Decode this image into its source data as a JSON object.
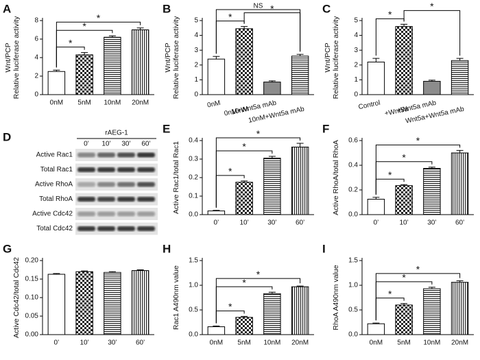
{
  "chart_data": [
    {
      "type": "bar",
      "panel": "A",
      "ylabel": [
        "Wnt/PCP",
        "Relative luciferase activity"
      ],
      "categories": [
        "0nM",
        "5nM",
        "10nM",
        "20nM"
      ],
      "values": [
        2.5,
        4.3,
        6.2,
        7.0
      ],
      "errors": [
        0.15,
        0.25,
        0.15,
        0.2
      ],
      "fills": [
        "white",
        "checker",
        "hlines",
        "vlines"
      ],
      "ylim": [
        0,
        8
      ],
      "yticks": [
        0,
        2,
        4,
        6,
        8
      ],
      "brackets": [
        {
          "from": 0,
          "to": 1,
          "label": "*"
        },
        {
          "from": 0,
          "to": 2,
          "label": "*"
        },
        {
          "from": 0,
          "to": 3,
          "label": "*"
        }
      ]
    },
    {
      "type": "bar",
      "panel": "B",
      "ylabel": [
        "Wnt/PCP",
        "Relative luciferase activity"
      ],
      "categories": [
        "0nM",
        "10nM",
        "0nM+Wnt5a mAb",
        "10nM+Wnt5a mAb"
      ],
      "values": [
        2.4,
        4.45,
        0.85,
        2.6
      ],
      "errors": [
        0.18,
        0.15,
        0.08,
        0.12
      ],
      "fills": [
        "white",
        "checker",
        "gray",
        "hlines"
      ],
      "ylim": [
        0,
        5
      ],
      "yticks": [
        0,
        1,
        2,
        3,
        4,
        5
      ],
      "brackets": [
        {
          "from": 0,
          "to": 1,
          "label": "*"
        },
        {
          "from": 1,
          "to": 3,
          "label": "*"
        },
        {
          "from": 0,
          "to": 3,
          "label": "NS"
        }
      ]
    },
    {
      "type": "bar",
      "panel": "C",
      "ylabel": [
        "Wnt/PCP",
        "Relative luciferase activity"
      ],
      "categories": [
        "Control",
        "+Wnt5a",
        "+Wnt5a mAb",
        "Wnt5a+Wnt5a mAb"
      ],
      "values": [
        2.2,
        4.6,
        0.9,
        2.3
      ],
      "errors": [
        0.25,
        0.15,
        0.08,
        0.15
      ],
      "fills": [
        "white",
        "checker",
        "gray",
        "hlines"
      ],
      "ylim": [
        0,
        5
      ],
      "yticks": [
        0,
        1,
        2,
        3,
        4,
        5
      ],
      "brackets": [
        {
          "from": 0,
          "to": 1,
          "label": "*"
        },
        {
          "from": 1,
          "to": 3,
          "label": "*"
        }
      ]
    },
    {
      "type": "bar",
      "panel": "E",
      "ylabel": [
        "Active Rac1/total Rac1"
      ],
      "categories": [
        "0’",
        "10’",
        "30’",
        "60’"
      ],
      "values": [
        0.02,
        0.175,
        0.305,
        0.365
      ],
      "errors": [
        0.003,
        0.007,
        0.01,
        0.02
      ],
      "fills": [
        "white",
        "checker",
        "hlines",
        "vlines"
      ],
      "ylim": [
        0,
        0.4
      ],
      "yticks": [
        {
          "value": 0,
          "label": "0.0"
        },
        0.1,
        0.2,
        0.3,
        0.4
      ],
      "brackets": [
        {
          "from": 0,
          "to": 1,
          "label": "*"
        },
        {
          "from": 0,
          "to": 2,
          "label": "*"
        },
        {
          "from": 0,
          "to": 3,
          "label": "*"
        }
      ]
    },
    {
      "type": "bar",
      "panel": "F",
      "ylabel": [
        "Active RhoA/total RhoA"
      ],
      "categories": [
        "0’",
        "10’",
        "30’",
        "60’"
      ],
      "values": [
        0.125,
        0.235,
        0.375,
        0.5
      ],
      "errors": [
        0.015,
        0.008,
        0.01,
        0.02
      ],
      "fills": [
        "white",
        "checker",
        "hlines",
        "vlines"
      ],
      "ylim": [
        0,
        0.6
      ],
      "yticks": [
        {
          "value": 0,
          "label": "0.0"
        },
        0.2,
        0.4,
        0.6
      ],
      "brackets": [
        {
          "from": 0,
          "to": 1,
          "label": "*"
        },
        {
          "from": 0,
          "to": 2,
          "label": "*"
        },
        {
          "from": 0,
          "to": 3,
          "label": "*"
        }
      ]
    },
    {
      "type": "bar",
      "panel": "G",
      "ylabel": [
        "Active Cdc42/total Cdc42"
      ],
      "categories": [
        "0’",
        "10’",
        "30’",
        "60’"
      ],
      "values": [
        0.163,
        0.17,
        0.168,
        0.173
      ],
      "errors": [
        0.002,
        0.002,
        0.002,
        0.002
      ],
      "fills": [
        "white",
        "checker",
        "hlines",
        "vlines"
      ],
      "ylim": [
        0,
        0.2
      ],
      "yticks": [
        {
          "value": 0,
          "label": "0.00"
        },
        0.05,
        {
          "value": 0.1,
          "label": "0.10"
        },
        0.15,
        {
          "value": 0.2,
          "label": "0.20"
        }
      ],
      "brackets": []
    },
    {
      "type": "bar",
      "panel": "H",
      "ylabel": [
        "Rac1 A490nm value"
      ],
      "categories": [
        "0nM",
        "5nM",
        "10nM",
        "20nM"
      ],
      "values": [
        0.16,
        0.35,
        0.83,
        0.97
      ],
      "errors": [
        0.015,
        0.02,
        0.03,
        0.015
      ],
      "fills": [
        "white",
        "checker",
        "hlines",
        "vlines"
      ],
      "ylim": [
        0,
        1.5
      ],
      "yticks": [
        {
          "value": 0,
          "label": "0.0"
        },
        0.5,
        {
          "value": 1,
          "label": "1.0"
        },
        1.5
      ],
      "brackets": [
        {
          "from": 0,
          "to": 1,
          "label": "*"
        },
        {
          "from": 0,
          "to": 2,
          "label": "*"
        },
        {
          "from": 0,
          "to": 3,
          "label": "*"
        }
      ]
    },
    {
      "type": "bar",
      "panel": "I",
      "ylabel": [
        "RhoA A490nm value"
      ],
      "categories": [
        "0nM",
        "5nM",
        "10nM",
        "20nM"
      ],
      "values": [
        0.22,
        0.6,
        0.93,
        1.06
      ],
      "errors": [
        0.015,
        0.03,
        0.03,
        0.03
      ],
      "fills": [
        "white",
        "checker",
        "hlines",
        "vlines"
      ],
      "ylim": [
        0,
        1.5
      ],
      "yticks": [
        {
          "value": 0,
          "label": "0.0"
        },
        0.5,
        {
          "value": 1,
          "label": "1.0"
        },
        1.5
      ],
      "brackets": [
        {
          "from": 0,
          "to": 1,
          "label": "*"
        },
        {
          "from": 0,
          "to": 2,
          "label": "*"
        },
        {
          "from": 0,
          "to": 3,
          "label": "*"
        }
      ]
    }
  ],
  "blot": {
    "panel": "D",
    "title": "rAEG-1",
    "lanes": [
      "0’",
      "10’",
      "30’",
      "60’"
    ],
    "rows": [
      "Active Rac1",
      "Total Rac1",
      "Active RhoA",
      "Total RhoA",
      "Active Cdc42",
      "Total Cdc42"
    ]
  }
}
